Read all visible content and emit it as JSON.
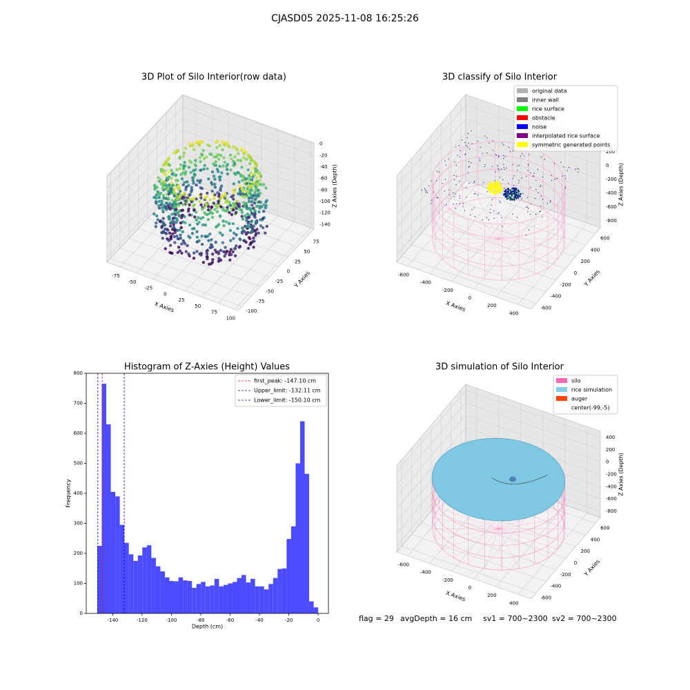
{
  "suptitle": "CJASD05 2025-11-08 16:25:26",
  "status": [
    "flag = 29",
    "avgDepth = 16 cm",
    "sv1 = 700~2300",
    "sv2 = 700~2300"
  ],
  "chart_data": [
    {
      "type": "scatter3d",
      "title": "3D Plot of Silo Interior(row data)",
      "xlabel": "X Axies",
      "ylabel": "Y Axies",
      "zlabel": "Z Axies (Depth)",
      "xlim": [
        -95,
        105
      ],
      "ylim": [
        -110,
        95
      ],
      "zlim": [
        -148,
        2
      ],
      "xticks": [
        -75,
        -50,
        -25,
        0,
        25,
        50,
        75,
        100
      ],
      "yticks": [
        -100,
        -75,
        -50,
        -25,
        0,
        25,
        50,
        75
      ],
      "zticks": [
        0,
        -20,
        -40,
        -60,
        -80,
        -100,
        -120,
        -140
      ]
    },
    {
      "type": "scatter3d",
      "title": "3D classify of Silo Interior",
      "xlabel": "X Axies",
      "ylabel": "Y Axies",
      "zlabel": "Z Axies (Depth)",
      "xlim": [
        -700,
        520
      ],
      "ylim": [
        -700,
        700
      ],
      "zlim": [
        -900,
        350
      ],
      "xticks": [
        -600,
        -400,
        -200,
        0,
        200,
        400
      ],
      "yticks": [
        -600,
        -400,
        -200,
        0,
        200,
        400,
        600
      ],
      "zticks": [
        -800,
        -600,
        -400,
        -200,
        0,
        200
      ],
      "legend_loc": "upper right",
      "legend": [
        {
          "name": "original data",
          "color": "#b0b0b0"
        },
        {
          "name": "inner wall",
          "color": "#808080"
        },
        {
          "name": "rice surface",
          "color": "#00ff00"
        },
        {
          "name": "obstacle",
          "color": "#ff0000"
        },
        {
          "name": "noise",
          "color": "#0000ff"
        },
        {
          "name": "interpolated rice surface",
          "color": "#800080"
        },
        {
          "name": "symmetric generated points",
          "color": "#ffff00"
        }
      ]
    },
    {
      "type": "histogram",
      "title": "Histogram of Z-Axies (Height) Values",
      "xlabel": "Depth (cm)",
      "ylabel": "Frequency",
      "color": "#4b4bff",
      "bins": [
        -150.5,
        -147.43,
        -144.36,
        -141.29,
        -138.21,
        -135.14,
        -132.07,
        -129.0,
        -125.93,
        -122.86,
        -119.79,
        -116.71,
        -113.64,
        -110.57,
        -107.5,
        -104.43,
        -101.36,
        -98.29,
        -95.21,
        -92.14,
        -89.07,
        -86.0,
        -82.93,
        -79.86,
        -76.79,
        -73.71,
        -70.64,
        -67.57,
        -64.5,
        -61.43,
        -58.36,
        -55.29,
        -52.21,
        -49.14,
        -46.07,
        -43.0,
        -39.93,
        -36.86,
        -33.79,
        -30.71,
        -27.64,
        -24.57,
        -21.5,
        -18.43,
        -15.36,
        -12.29,
        -9.21,
        -6.14,
        -3.07,
        0.0
      ],
      "values": [
        225,
        765,
        630,
        405,
        390,
        295,
        235,
        197,
        175,
        193,
        220,
        227,
        185,
        157,
        140,
        120,
        108,
        107,
        120,
        110,
        108,
        85,
        98,
        105,
        90,
        93,
        115,
        90,
        95,
        100,
        105,
        118,
        128,
        103,
        115,
        90,
        90,
        80,
        98,
        118,
        148,
        150,
        248,
        290,
        500,
        640,
        465,
        40,
        20
      ],
      "xlim": [
        -158,
        7
      ],
      "ylim": [
        0,
        800
      ],
      "xticks": [
        -140,
        -120,
        -100,
        -80,
        -60,
        -40,
        -20,
        0
      ],
      "yticks": [
        0,
        100,
        200,
        300,
        400,
        500,
        600,
        700,
        800
      ],
      "legend_loc": "upper right",
      "vlines": [
        {
          "label": "first_peak: -147.10 cm",
          "value": -147.1,
          "color": "#ff0000"
        },
        {
          "label": "Upper_limit: -132.11 cm",
          "value": -132.11,
          "color": "#0000cc"
        },
        {
          "label": "Lower_limit: -150.10 cm",
          "value": -150.1,
          "color": "#0000cc"
        }
      ]
    },
    {
      "type": "scatter3d",
      "title": "3D simulation of Silo Interior",
      "xlabel": "X Axies",
      "ylabel": "Y Axies",
      "zlabel": "Z Axies (Depth)",
      "xlim": [
        -700,
        520
      ],
      "ylim": [
        -700,
        700
      ],
      "zlim": [
        -900,
        500
      ],
      "xticks": [
        -600,
        -400,
        -200,
        0,
        200,
        400
      ],
      "yticks": [
        -600,
        -400,
        -200,
        0,
        200,
        400,
        600
      ],
      "zticks": [
        -800,
        -600,
        -400,
        -200,
        0,
        200,
        400
      ],
      "legend_loc": "upper right",
      "legend": [
        {
          "name": "silo",
          "color": "#ff69b4"
        },
        {
          "name": "rice simulation",
          "color": "#87ceeb"
        },
        {
          "name": "auger",
          "color": "#ff4500"
        },
        {
          "name": "center(-99,-5)"
        }
      ]
    }
  ]
}
